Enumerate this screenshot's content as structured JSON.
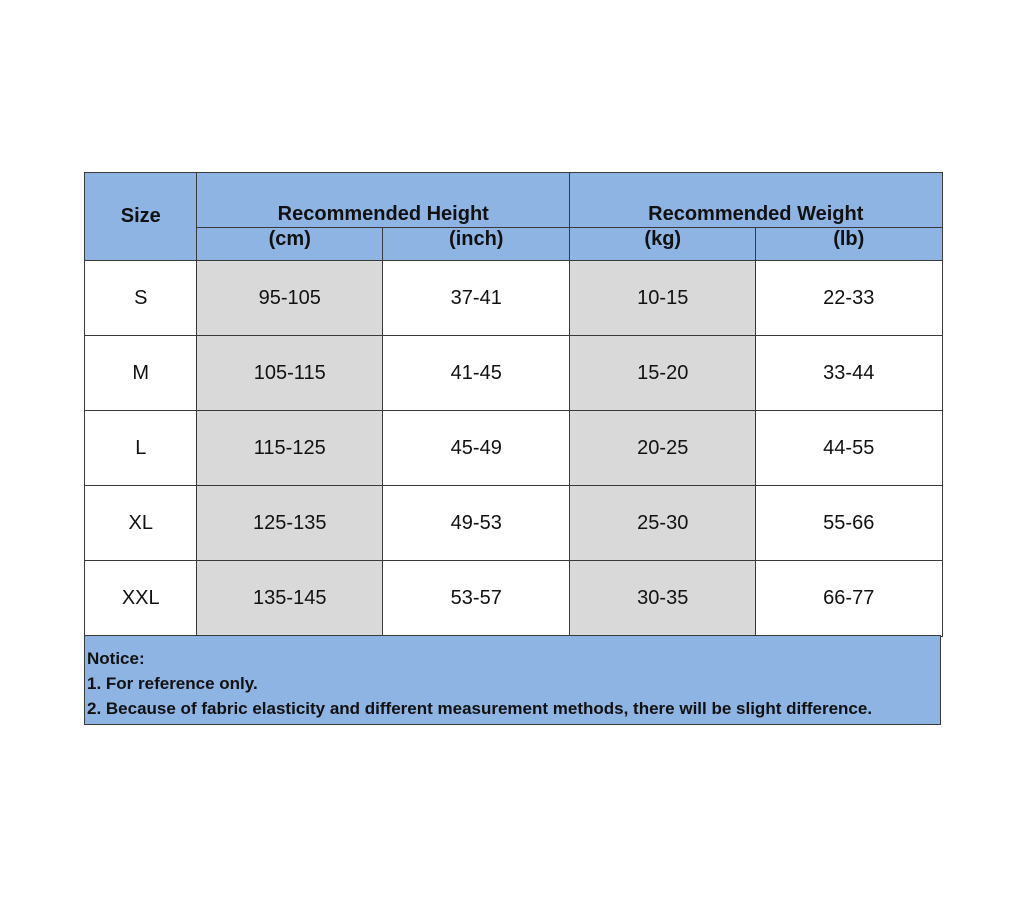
{
  "header": {
    "size": "Size",
    "height_group": "Recommended Height",
    "weight_group": "Recommended Weight",
    "units": [
      "(cm)",
      "(inch)",
      "(kg)",
      "(lb)"
    ]
  },
  "rows": [
    {
      "size": "S",
      "cells": [
        "95-105",
        "37-41",
        "10-15",
        "22-33"
      ]
    },
    {
      "size": "M",
      "cells": [
        "105-115",
        "41-45",
        "15-20",
        "33-44"
      ]
    },
    {
      "size": "L",
      "cells": [
        "115-125",
        "45-49",
        "20-25",
        "44-55"
      ]
    },
    {
      "size": "XL",
      "cells": [
        "125-135",
        "49-53",
        "25-30",
        "55-66"
      ]
    },
    {
      "size": "XXL",
      "cells": [
        "135-145",
        "53-57",
        "30-35",
        "66-77"
      ]
    }
  ],
  "notice": {
    "title": "Notice:",
    "lines": [
      "1. For reference only.",
      "2. Because of fabric elasticity and different measurement methods, there will be slight difference."
    ]
  },
  "colors": {
    "header": "#8db4e2",
    "shaded": "#d9d9d9"
  }
}
